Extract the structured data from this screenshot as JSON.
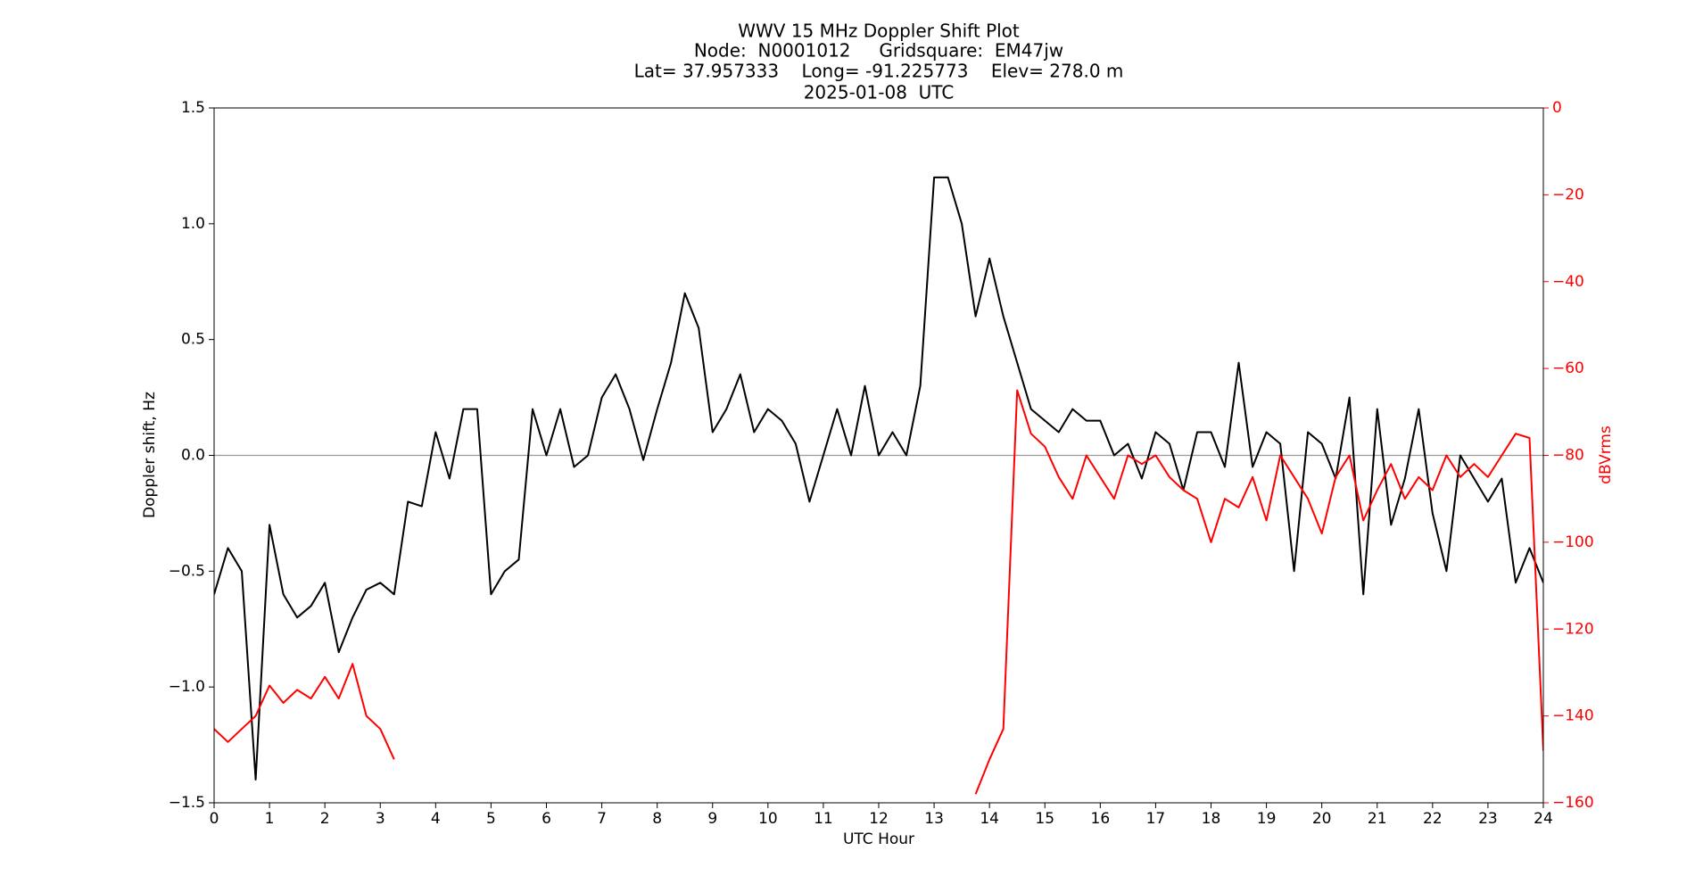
{
  "chart_data": {
    "type": "line",
    "title": [
      "WWV 15 MHz Doppler Shift Plot",
      "Node:  N0001012     Gridsquare:  EM47jw",
      "Lat= 37.957333    Long= -91.225773    Elev= 278.0 m",
      "2025-01-08  UTC"
    ],
    "x_label": "UTC Hour",
    "y_label": "Doppler shift, Hz",
    "y2_label": "dBVrms",
    "x": [
      0,
      0.25,
      0.5,
      0.75,
      1,
      1.25,
      1.5,
      1.75,
      2,
      2.25,
      2.5,
      2.75,
      3,
      3.25,
      3.5,
      3.75,
      4,
      4.25,
      4.5,
      4.75,
      5,
      5.25,
      5.5,
      5.75,
      6,
      6.25,
      6.5,
      6.75,
      7,
      7.25,
      7.5,
      7.75,
      8,
      8.25,
      8.5,
      8.75,
      9,
      9.25,
      9.5,
      9.75,
      10,
      10.25,
      10.5,
      10.75,
      11,
      11.25,
      11.5,
      11.75,
      12,
      12.25,
      12.5,
      12.75,
      13,
      13.25,
      13.5,
      13.75,
      14,
      14.25,
      14.5,
      14.75,
      15,
      15.25,
      15.5,
      15.75,
      16,
      16.25,
      16.5,
      16.75,
      17,
      17.25,
      17.5,
      17.75,
      18,
      18.25,
      18.5,
      18.75,
      19,
      19.25,
      19.5,
      19.75,
      20,
      20.25,
      20.5,
      20.75,
      21,
      21.25,
      21.5,
      21.75,
      22,
      22.25,
      22.5,
      22.75,
      23,
      23.25,
      23.5,
      23.75,
      24
    ],
    "series": [
      {
        "name": "Doppler shift",
        "color": "#000000",
        "values": [
          -0.6,
          -0.4,
          -0.5,
          -1.4,
          -0.3,
          -0.6,
          -0.7,
          -0.65,
          -0.55,
          -0.85,
          -0.7,
          -0.58,
          -0.55,
          -0.6,
          -0.2,
          -0.22,
          0.1,
          -0.1,
          0.2,
          0.2,
          -0.6,
          -0.5,
          -0.45,
          0.2,
          0.0,
          0.2,
          -0.05,
          0.0,
          0.25,
          0.35,
          0.2,
          -0.02,
          0.2,
          0.4,
          0.7,
          0.55,
          0.1,
          0.2,
          0.35,
          0.1,
          0.2,
          0.15,
          0.05,
          -0.2,
          0.0,
          0.2,
          0.0,
          0.3,
          0.0,
          0.1,
          0.0,
          0.3,
          1.2,
          1.2,
          1.0,
          0.6,
          0.85,
          0.6,
          0.4,
          0.2,
          0.15,
          0.1,
          0.2,
          0.15,
          0.15,
          0.0,
          0.05,
          -0.1,
          0.1,
          0.05,
          -0.15,
          0.1,
          0.1,
          -0.05,
          0.4,
          -0.05,
          0.1,
          0.05,
          -0.5,
          0.1,
          0.05,
          -0.1,
          0.25,
          -0.6,
          0.2,
          -0.3,
          -0.1,
          0.2,
          -0.25,
          -0.5,
          0.0,
          -0.1,
          -0.2,
          -0.1,
          -0.55,
          -0.4,
          -0.55
        ]
      },
      {
        "name": "dBVrms",
        "color": "#ff0000",
        "axis": "y2",
        "values": [
          -143,
          -146,
          -143,
          -140,
          -133,
          -137,
          -134,
          -136,
          -131,
          -136,
          -128,
          -140,
          -143,
          -150,
          null,
          null,
          null,
          null,
          null,
          null,
          null,
          null,
          null,
          null,
          null,
          null,
          null,
          null,
          null,
          null,
          null,
          null,
          null,
          null,
          null,
          null,
          null,
          null,
          null,
          null,
          null,
          null,
          null,
          null,
          null,
          null,
          null,
          null,
          null,
          null,
          null,
          null,
          null,
          null,
          null,
          -158,
          -150,
          -143,
          -65,
          -75,
          -78,
          -85,
          -90,
          -80,
          -85,
          -90,
          -80,
          -82,
          -80,
          -85,
          -88,
          -90,
          -100,
          -90,
          -92,
          -85,
          -95,
          -80,
          -85,
          -90,
          -98,
          -85,
          -80,
          -95,
          -88,
          -82,
          -90,
          -85,
          -88,
          -80,
          -85,
          -82,
          -85,
          -80,
          -75,
          -76,
          -148
        ]
      }
    ],
    "xlim": [
      0,
      24
    ],
    "xticks": [
      0,
      1,
      2,
      3,
      4,
      5,
      6,
      7,
      8,
      9,
      10,
      11,
      12,
      13,
      14,
      15,
      16,
      17,
      18,
      19,
      20,
      21,
      22,
      23,
      24
    ],
    "ylim": [
      -1.5,
      1.5
    ],
    "yticks": [
      {
        "value": -1.5,
        "label": "−1.5"
      },
      {
        "value": -1,
        "label": "−1.0"
      },
      {
        "value": -0.5,
        "label": "−0.5"
      },
      {
        "value": 0,
        "label": "0.0"
      },
      {
        "value": 0.5,
        "label": "0.5"
      },
      {
        "value": 1,
        "label": "1.0"
      },
      1.5
    ],
    "y2lim": [
      -160,
      0
    ],
    "y2ticks": [
      {
        "value": -160,
        "label": "−160"
      },
      {
        "value": -140,
        "label": "−140"
      },
      {
        "value": -120,
        "label": "−120"
      },
      {
        "value": -100,
        "label": "−100"
      },
      {
        "value": -80,
        "label": "−80"
      },
      {
        "value": -60,
        "label": "−60"
      },
      {
        "value": -40,
        "label": "−40"
      },
      {
        "value": -20,
        "label": "−20"
      },
      0
    ],
    "y2_color": "#ff0000",
    "hline": 0,
    "hline_color": "#999999"
  }
}
